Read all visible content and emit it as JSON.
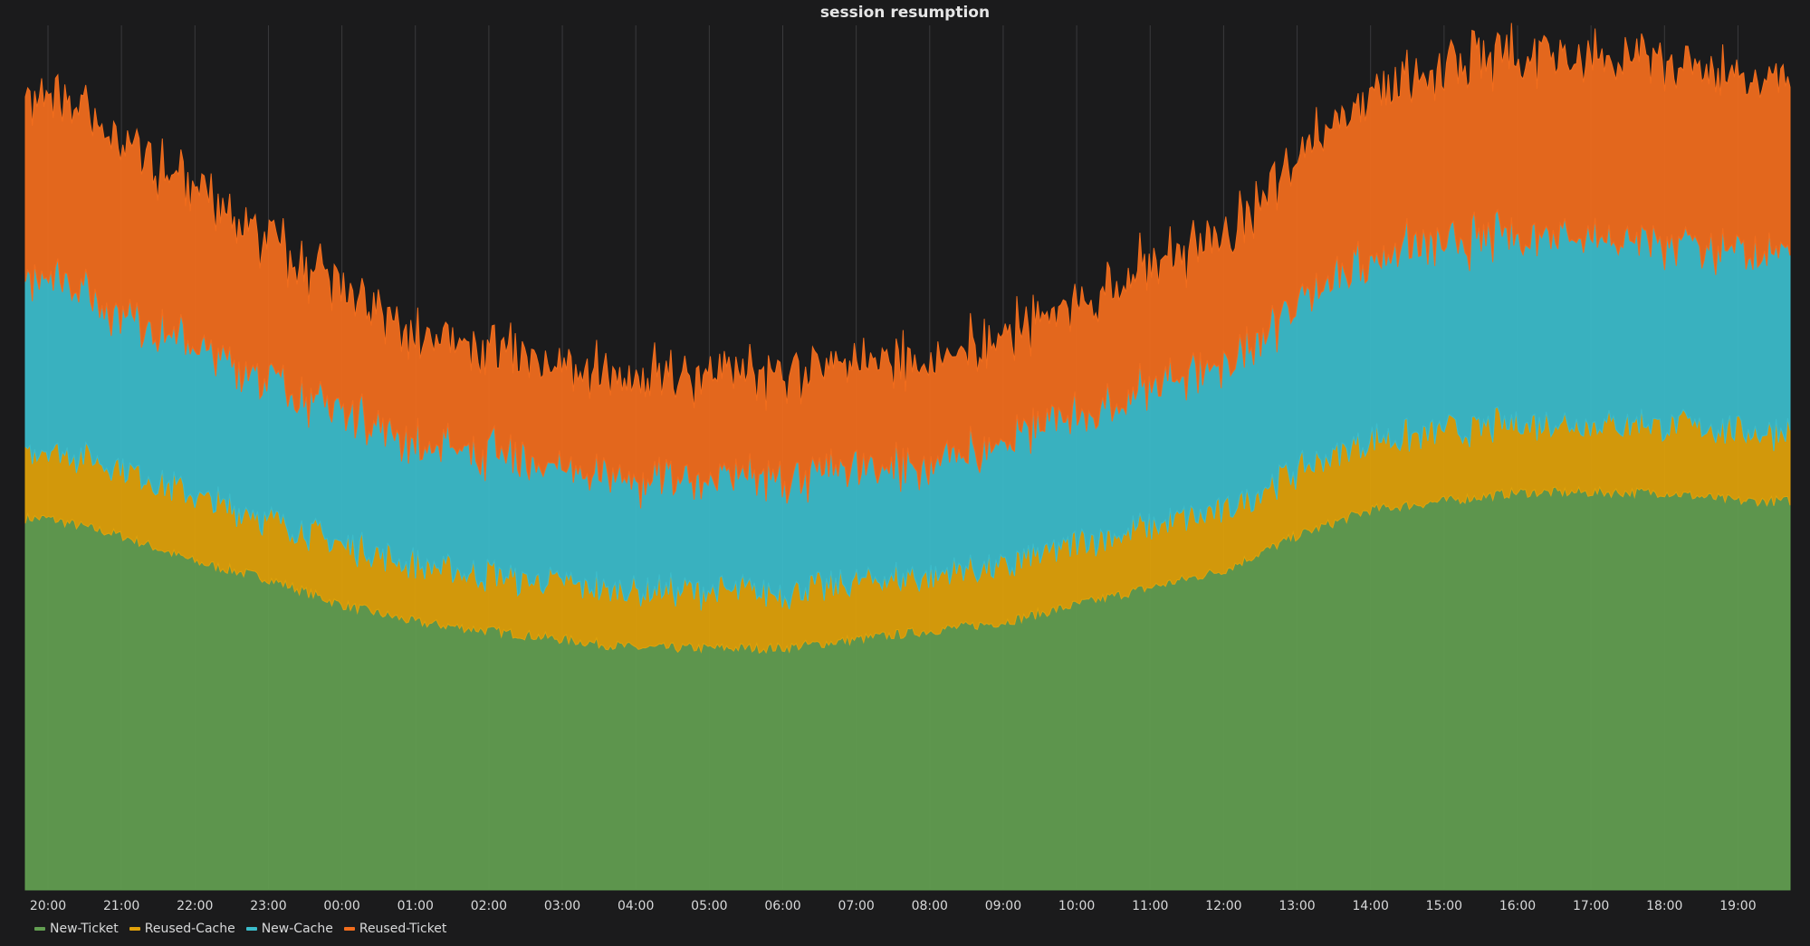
{
  "chart_data": {
    "type": "area",
    "stacked": true,
    "title": "session resumption",
    "x": [
      "20:00",
      "21:00",
      "22:00",
      "23:00",
      "00:00",
      "01:00",
      "02:00",
      "03:00",
      "04:00",
      "05:00",
      "06:00",
      "07:00",
      "08:00",
      "09:00",
      "10:00",
      "11:00",
      "12:00",
      "13:00",
      "14:00",
      "15:00",
      "16:00",
      "17:00",
      "18:00",
      "19:00"
    ],
    "x_range": [
      "19:50",
      "19:48"
    ],
    "grid": true,
    "legend": "bottom-left",
    "series": [
      {
        "name": "New-Ticket",
        "color": "#629e51",
        "values": [
          43,
          41,
          38,
          36,
          33,
          31,
          30,
          29,
          28,
          28,
          28,
          29,
          30,
          31,
          33,
          35,
          37,
          41,
          44,
          45,
          46,
          46,
          46,
          45
        ]
      },
      {
        "name": "Reused-Cache",
        "color": "#e0a10a",
        "values": [
          8,
          8,
          7.5,
          7,
          7,
          6.5,
          6.5,
          6.5,
          6.5,
          6.5,
          6.5,
          6.5,
          6.5,
          6.5,
          7,
          7,
          7,
          7.5,
          8,
          8,
          8,
          8,
          8,
          8
        ]
      },
      {
        "name": "New-Cache",
        "color": "#3bbccb",
        "values": [
          20,
          18,
          17,
          16,
          15,
          14,
          14,
          13,
          13,
          13,
          13,
          13,
          13,
          14,
          15,
          16,
          17,
          19,
          21,
          22,
          22,
          22,
          21,
          21
        ]
      },
      {
        "name": "Reused-Ticket",
        "color": "#f26d1d",
        "values": [
          21,
          20,
          18,
          16,
          14,
          13,
          12,
          12,
          12,
          12,
          12,
          12,
          12,
          12,
          13,
          14,
          15,
          17,
          19,
          20,
          21,
          21,
          21,
          20
        ]
      }
    ]
  }
}
